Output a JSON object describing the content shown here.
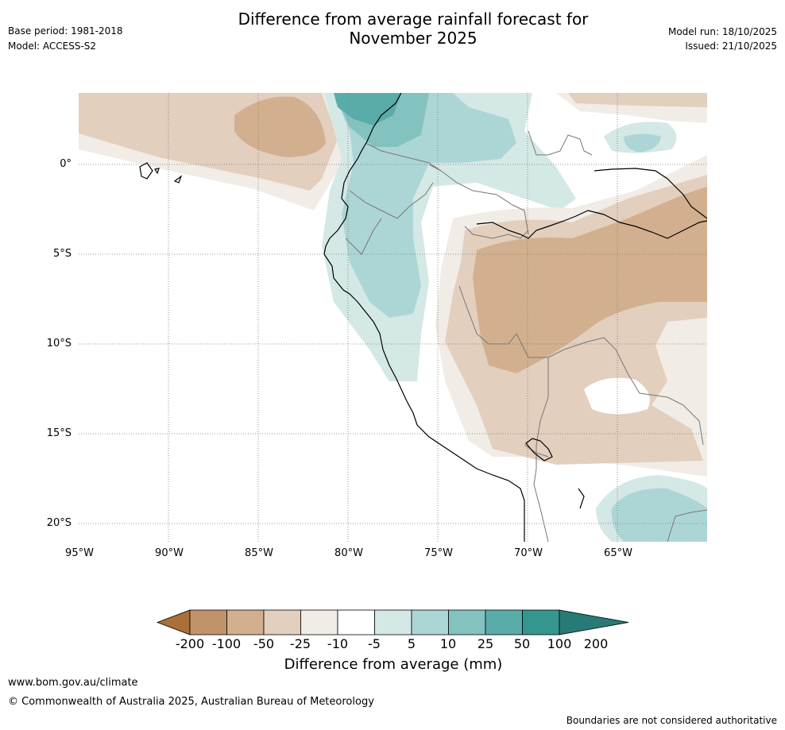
{
  "title_line1": "Difference from average rainfall forecast for",
  "title_line2": "November 2025",
  "base_period": "Base period: 1981-2018",
  "model": "Model: ACCESS-S2",
  "model_run": "Model run: 18/10/2025",
  "issued": "Issued: 21/10/2025",
  "latitude_labels": [
    "0°",
    "5°S",
    "10°S",
    "15°S",
    "20°S"
  ],
  "longitude_labels": [
    "95°W",
    "90°W",
    "85°W",
    "80°W",
    "75°W",
    "70°W",
    "65°W"
  ],
  "colorbar": {
    "title": "Difference from average (mm)",
    "ticks": [
      "-200",
      "-100",
      "-50",
      "-25",
      "-10",
      "-5",
      "5",
      "10",
      "25",
      "50",
      "100",
      "200"
    ],
    "colors": [
      "#a9703a",
      "#c1936b",
      "#d2b08f",
      "#e3cfbe",
      "#f1ece6",
      "#ffffff",
      "#d4e8e6",
      "#acd6d5",
      "#84c2c0",
      "#5aacaa",
      "#35958f",
      "#277a75"
    ]
  },
  "footer_url": "www.bom.gov.au/climate",
  "copyright": "© Commonwealth of Australia 2025, Australian Bureau of Meteorology",
  "disclaimer": "Boundaries are not considered authoritative"
}
